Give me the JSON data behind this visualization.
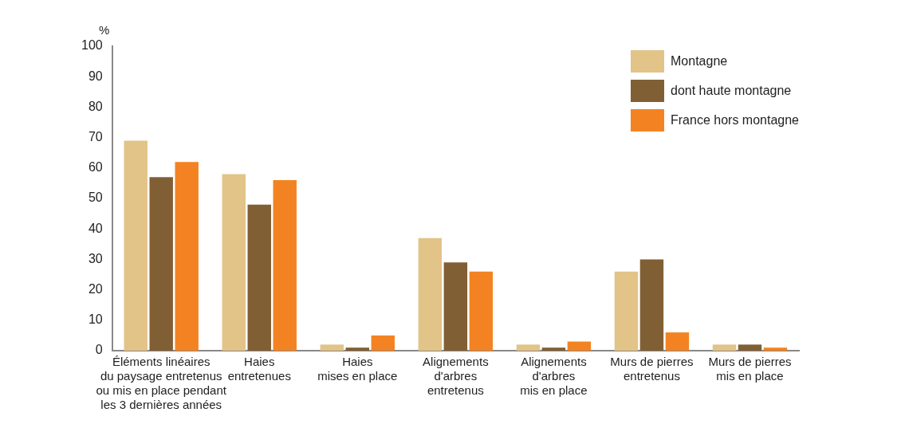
{
  "chart_data": {
    "type": "bar",
    "ylabel": "%",
    "categories": [
      "Éléments linéaires\ndu paysage entretenus\nou mis en place pendant\nles 3 dernières années",
      "Haies\nentretenues",
      "Haies\nmises en place",
      "Alignements\nd'arbres\nentretenus",
      "Alignements\nd'arbres\nmis en place",
      "Murs de pierres\nentretenus",
      "Murs de pierres\nmis en place"
    ],
    "series": [
      {
        "name": "Montagne",
        "color": "#e2c388",
        "values": [
          69,
          58,
          2,
          37,
          2,
          26,
          2
        ]
      },
      {
        "name": "dont haute montagne",
        "color": "#815f34",
        "values": [
          57,
          48,
          1,
          29,
          1,
          30,
          2
        ]
      },
      {
        "name": "France hors montagne",
        "color": "#f38322",
        "values": [
          62,
          56,
          5,
          26,
          3,
          6,
          1
        ]
      }
    ],
    "ylim": [
      0,
      100
    ],
    "yticks": [
      0,
      10,
      20,
      30,
      40,
      50,
      60,
      70,
      80,
      90,
      100
    ],
    "grid": false,
    "legend": "top right"
  }
}
